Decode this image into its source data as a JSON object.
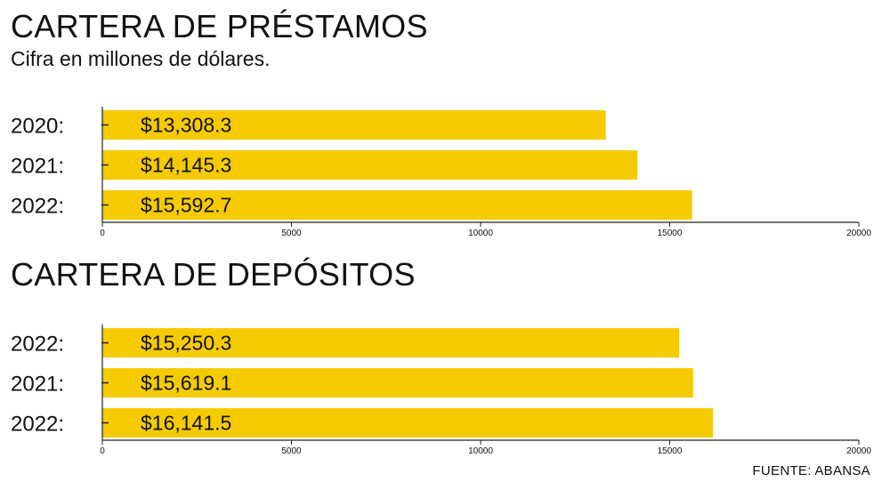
{
  "colors": {
    "bar": "#f5cb00",
    "axis": "#222222",
    "text": "#111111"
  },
  "source": "FUENTE: ABANSA",
  "chart_data": [
    {
      "type": "bar",
      "orientation": "horizontal",
      "title": "CARTERA DE PRÉSTAMOS",
      "subtitle": "Cifra en millones de dólares.",
      "categories": [
        "2020:",
        "2021:",
        "2022:"
      ],
      "values": [
        13308.3,
        14145.3,
        15592.7
      ],
      "value_labels": [
        "$13,308.3",
        "$14,145.3",
        "$15,592.7"
      ],
      "xlim": [
        0,
        20000
      ],
      "xticks": [
        0,
        5000,
        10000,
        15000,
        20000
      ],
      "xtick_labels": [
        "0",
        "5000",
        "10000",
        "15000",
        "20000"
      ],
      "grid": false
    },
    {
      "type": "bar",
      "orientation": "horizontal",
      "title": "CARTERA DE DEPÓSITOS",
      "categories": [
        "2022:",
        "2021:",
        "2022:"
      ],
      "values": [
        15250.3,
        15619.1,
        16141.5
      ],
      "value_labels": [
        "$15,250.3",
        "$15,619.1",
        "$16,141.5"
      ],
      "xlim": [
        0,
        20000
      ],
      "xticks": [
        0,
        5000,
        10000,
        15000,
        20000
      ],
      "xtick_labels": [
        "0",
        "5000",
        "10000",
        "15000",
        "20000"
      ],
      "grid": false
    }
  ]
}
